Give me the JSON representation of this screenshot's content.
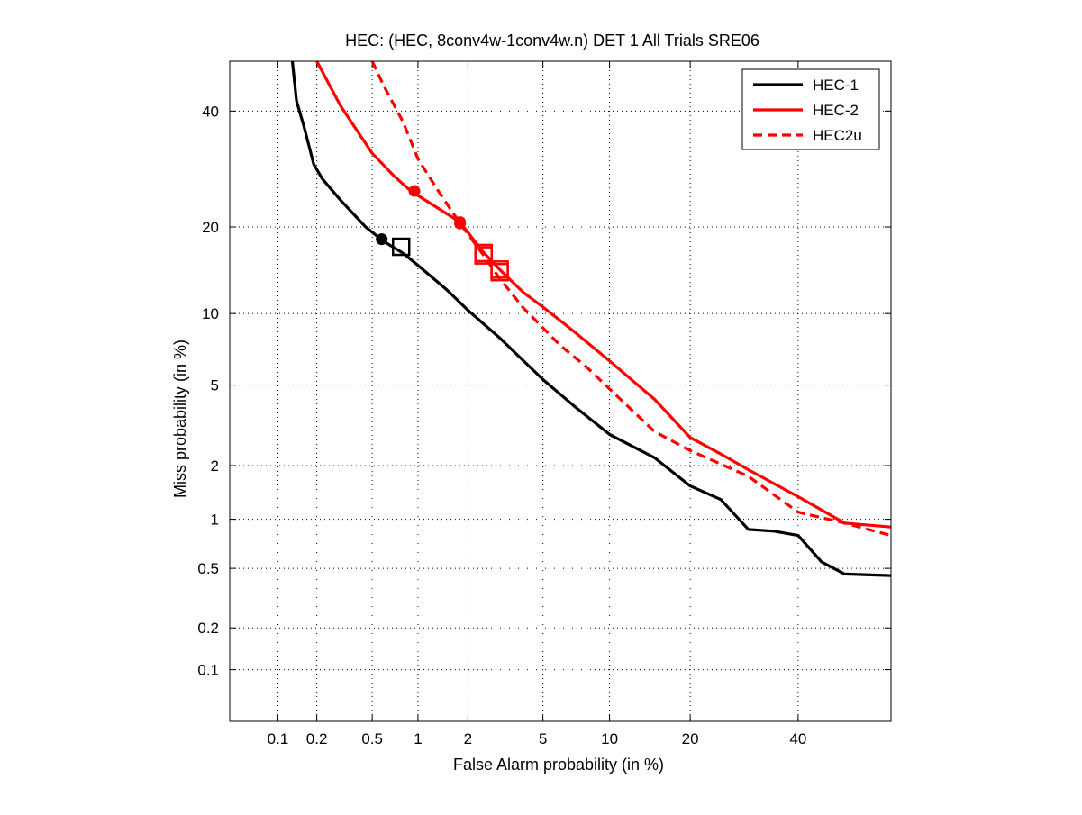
{
  "chart_data": {
    "type": "line",
    "title": "HEC: (HEC, 8conv4w-1conv4w.n) DET 1 All Trials SRE06",
    "xlabel": "False Alarm probability (in %)",
    "ylabel": "Miss probability (in %)",
    "scale": "normal-deviate (probit)",
    "xlim": [
      0.04,
      60
    ],
    "ylim": [
      0.04,
      50
    ],
    "xticks": [
      0.1,
      0.2,
      0.5,
      1,
      2,
      5,
      10,
      20,
      40
    ],
    "xtick_labels": [
      "0.1",
      "0.2",
      "0.5",
      "1",
      "2",
      "5",
      "10",
      "20",
      "40"
    ],
    "yticks": [
      0.1,
      0.2,
      0.5,
      1,
      2,
      5,
      10,
      20,
      40
    ],
    "ytick_labels": [
      "0.1",
      "0.2",
      "0.5",
      "1",
      "2",
      "5",
      "10",
      "20",
      "40"
    ],
    "grid": true,
    "legend_position": "top-right",
    "series": [
      {
        "name": "HEC-1",
        "color": "#000000",
        "style": "solid",
        "points": [
          [
            0.13,
            50
          ],
          [
            0.14,
            42
          ],
          [
            0.16,
            37
          ],
          [
            0.19,
            30
          ],
          [
            0.22,
            27.5
          ],
          [
            0.3,
            24
          ],
          [
            0.45,
            20
          ],
          [
            0.6,
            18
          ],
          [
            0.8,
            16.5
          ],
          [
            1,
            15
          ],
          [
            1.5,
            12.3
          ],
          [
            2,
            10.3
          ],
          [
            3,
            8
          ],
          [
            5,
            5.3
          ],
          [
            7,
            4
          ],
          [
            10,
            2.9
          ],
          [
            15,
            2.2
          ],
          [
            20,
            1.55
          ],
          [
            25,
            1.3
          ],
          [
            30,
            0.87
          ],
          [
            35,
            0.85
          ],
          [
            40,
            0.8
          ],
          [
            45,
            0.55
          ],
          [
            50,
            0.46
          ],
          [
            60,
            0.45
          ]
        ],
        "markers": {
          "circle": [
            0.58,
            18.3
          ],
          "square": [
            0.78,
            17.3
          ]
        }
      },
      {
        "name": "HEC-2",
        "color": "#ff0000",
        "style": "solid",
        "points": [
          [
            0.2,
            50
          ],
          [
            0.3,
            41
          ],
          [
            0.5,
            32
          ],
          [
            0.7,
            28
          ],
          [
            0.9,
            25.5
          ],
          [
            1.2,
            23.5
          ],
          [
            1.8,
            20.7
          ],
          [
            2.4,
            16.8
          ],
          [
            3,
            14.5
          ],
          [
            4,
            12
          ],
          [
            5,
            10.6
          ],
          [
            7,
            8.5
          ],
          [
            10,
            6.4
          ],
          [
            15,
            4.3
          ],
          [
            20,
            2.8
          ],
          [
            25,
            2.3
          ],
          [
            30,
            1.9
          ],
          [
            40,
            1.35
          ],
          [
            50,
            0.95
          ],
          [
            60,
            0.9
          ]
        ],
        "markers": {
          "circle": [
            0.95,
            25.5
          ],
          "circle_b": [
            1.8,
            20.7
          ],
          "square": [
            2.45,
            16.5
          ],
          "square_b": [
            3,
            14.2
          ]
        }
      },
      {
        "name": "HEC2u",
        "color": "#ff0000",
        "style": "dashed",
        "points": [
          [
            0.5,
            50
          ],
          [
            0.6,
            45
          ],
          [
            0.8,
            38
          ],
          [
            1,
            31
          ],
          [
            1.3,
            26
          ],
          [
            1.8,
            20.5
          ],
          [
            2.4,
            16.5
          ],
          [
            3,
            13.5
          ],
          [
            4,
            10.5
          ],
          [
            6,
            7.5
          ],
          [
            8,
            6
          ],
          [
            10,
            4.8
          ],
          [
            15,
            3
          ],
          [
            20,
            2.4
          ],
          [
            30,
            1.75
          ],
          [
            40,
            1.1
          ],
          [
            50,
            0.95
          ],
          [
            60,
            0.8
          ]
        ],
        "markers": {
          "circle": [
            1.8,
            20.5
          ],
          "square": [
            2.45,
            16.2
          ],
          "square_b": [
            3,
            14.5
          ]
        }
      }
    ]
  }
}
